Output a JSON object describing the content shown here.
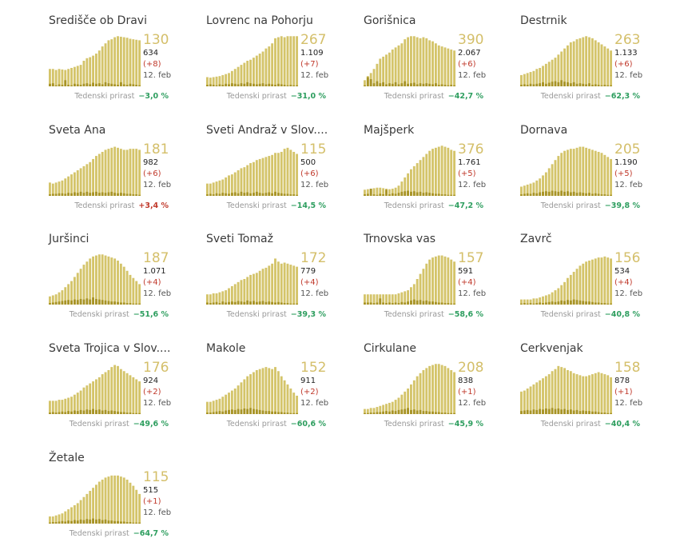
{
  "labels": {
    "growth_label": "Tedenski prirast",
    "date": "12. feb"
  },
  "colors": {
    "bar": "#d4c46a",
    "bar_dark": "#a89427",
    "active_number": "#d4bf6a",
    "new_cases": "#c0392b",
    "growth_negative": "#2e9e5f",
    "growth_positive": "#c0392b"
  },
  "chart_data": [
    {
      "type": "bar",
      "title": "Središče ob Dravi",
      "active": "130",
      "total": "634",
      "new": "(+8)",
      "growth": "−3,0 %",
      "growth_sign": "neg",
      "values": [
        34,
        34,
        32,
        34,
        33,
        32,
        34,
        36,
        38,
        40,
        42,
        50,
        55,
        57,
        60,
        64,
        70,
        78,
        84,
        90,
        92,
        96,
        98,
        97,
        96,
        95,
        93,
        92,
        91,
        90
      ],
      "daily": [
        5,
        6,
        2,
        4,
        3,
        12,
        3,
        2,
        5,
        4,
        3,
        5,
        6,
        4,
        7,
        5,
        6,
        4,
        8,
        6,
        5,
        4,
        3,
        8,
        4,
        3,
        5,
        4,
        3,
        2
      ]
    },
    {
      "type": "bar",
      "title": "Lovrenc na Pohorju",
      "active": "267",
      "total": "1.109",
      "new": "(+7)",
      "growth": "−31,0 %",
      "growth_sign": "neg",
      "values": [
        18,
        17,
        18,
        19,
        20,
        22,
        24,
        26,
        30,
        34,
        38,
        42,
        46,
        50,
        52,
        56,
        60,
        64,
        68,
        74,
        78,
        84,
        94,
        96,
        98,
        96,
        98,
        98,
        98,
        98
      ],
      "daily": [
        3,
        4,
        3,
        2,
        4,
        3,
        5,
        4,
        6,
        5,
        4,
        6,
        5,
        8,
        6,
        5,
        4,
        5,
        6,
        4,
        5,
        4,
        3,
        5,
        4,
        3,
        2,
        3,
        2,
        2
      ]
    },
    {
      "type": "bar",
      "title": "Gorišnica",
      "active": "390",
      "total": "2.067",
      "new": "(+6)",
      "growth": "−42,7 %",
      "growth_sign": "neg",
      "values": [
        12,
        20,
        26,
        34,
        44,
        54,
        58,
        62,
        66,
        72,
        76,
        80,
        84,
        92,
        96,
        98,
        98,
        96,
        94,
        96,
        94,
        90,
        88,
        84,
        80,
        78,
        76,
        74,
        72,
        70
      ],
      "daily": [
        2,
        18,
        14,
        6,
        10,
        6,
        8,
        4,
        6,
        5,
        8,
        4,
        6,
        10,
        5,
        6,
        7,
        4,
        6,
        5,
        6,
        5,
        4,
        6,
        3,
        4,
        3,
        2,
        3,
        2
      ]
    },
    {
      "type": "bar",
      "title": "Destrnik",
      "active": "263",
      "total": "1.133",
      "new": "(+6)",
      "growth": "−62,3 %",
      "growth_sign": "neg",
      "values": [
        22,
        24,
        26,
        28,
        30,
        34,
        36,
        40,
        44,
        48,
        52,
        56,
        62,
        68,
        74,
        80,
        86,
        88,
        92,
        94,
        96,
        98,
        96,
        94,
        90,
        86,
        82,
        78,
        74,
        70
      ],
      "daily": [
        3,
        4,
        3,
        5,
        4,
        5,
        6,
        8,
        5,
        7,
        9,
        10,
        8,
        12,
        9,
        8,
        6,
        8,
        5,
        6,
        5,
        4,
        6,
        3,
        4,
        3,
        2,
        3,
        2,
        2
      ]
    },
    {
      "type": "bar",
      "title": "Sveta Ana",
      "active": "181",
      "total": "982",
      "new": "(+6)",
      "growth": "+3,4 %",
      "growth_sign": "pos",
      "values": [
        26,
        24,
        26,
        28,
        30,
        34,
        38,
        42,
        46,
        50,
        54,
        58,
        62,
        66,
        72,
        78,
        82,
        86,
        90,
        92,
        94,
        96,
        94,
        92,
        90,
        90,
        92,
        92,
        92,
        90
      ],
      "daily": [
        3,
        4,
        4,
        5,
        5,
        4,
        6,
        5,
        7,
        6,
        8,
        6,
        8,
        6,
        7,
        8,
        6,
        7,
        6,
        7,
        8,
        6,
        5,
        6,
        5,
        4,
        4,
        3,
        3,
        2
      ]
    },
    {
      "type": "bar",
      "title": "Sveti Andraž v Slov....",
      "active": "115",
      "total": "500",
      "new": "(+6)",
      "growth": "−14,5 %",
      "growth_sign": "neg",
      "values": [
        24,
        24,
        26,
        28,
        30,
        32,
        36,
        40,
        42,
        46,
        50,
        54,
        56,
        60,
        64,
        66,
        70,
        72,
        74,
        76,
        78,
        80,
        84,
        84,
        86,
        92,
        94,
        90,
        86,
        82
      ],
      "daily": [
        3,
        4,
        3,
        5,
        4,
        6,
        5,
        4,
        6,
        7,
        5,
        8,
        6,
        7,
        5,
        6,
        8,
        6,
        5,
        6,
        7,
        5,
        8,
        6,
        5,
        4,
        4,
        3,
        3,
        2
      ]
    },
    {
      "type": "bar",
      "title": "Majšperk",
      "active": "376",
      "total": "1.761",
      "new": "(+5)",
      "growth": "−47,2 %",
      "growth_sign": "neg",
      "values": [
        12,
        13,
        14,
        15,
        16,
        16,
        15,
        14,
        13,
        14,
        16,
        20,
        28,
        36,
        44,
        52,
        58,
        64,
        70,
        76,
        82,
        88,
        92,
        94,
        96,
        98,
        96,
        94,
        90,
        88
      ],
      "daily": [
        3,
        4,
        14,
        3,
        2,
        4,
        3,
        12,
        3,
        5,
        4,
        6,
        8,
        9,
        10,
        8,
        9,
        7,
        8,
        6,
        7,
        6,
        5,
        4,
        4,
        3,
        3,
        2,
        2,
        2
      ]
    },
    {
      "type": "bar",
      "title": "Dornava",
      "active": "205",
      "total": "1.190",
      "new": "(+5)",
      "growth": "−39,8 %",
      "growth_sign": "neg",
      "values": [
        18,
        20,
        22,
        24,
        26,
        30,
        34,
        40,
        46,
        54,
        62,
        70,
        78,
        84,
        88,
        90,
        92,
        92,
        94,
        96,
        96,
        94,
        92,
        90,
        88,
        86,
        84,
        80,
        76,
        72
      ],
      "daily": [
        3,
        4,
        5,
        4,
        6,
        5,
        7,
        8,
        9,
        8,
        10,
        9,
        8,
        10,
        8,
        9,
        7,
        8,
        6,
        7,
        6,
        5,
        6,
        4,
        5,
        4,
        3,
        3,
        2,
        2
      ]
    },
    {
      "type": "bar",
      "title": "Juršinci",
      "active": "187",
      "total": "1.071",
      "new": "(+4)",
      "growth": "−51,6 %",
      "growth_sign": "neg",
      "values": [
        16,
        18,
        20,
        24,
        28,
        34,
        40,
        46,
        54,
        62,
        70,
        78,
        84,
        90,
        94,
        96,
        98,
        98,
        96,
        94,
        92,
        90,
        86,
        80,
        74,
        66,
        58,
        52,
        46,
        40
      ],
      "daily": [
        3,
        4,
        5,
        6,
        7,
        8,
        9,
        8,
        10,
        9,
        11,
        10,
        12,
        10,
        14,
        11,
        10,
        9,
        8,
        7,
        6,
        6,
        5,
        4,
        4,
        3,
        3,
        2,
        2,
        2
      ]
    },
    {
      "type": "bar",
      "title": "Sveti Tomaž",
      "active": "172",
      "total": "779",
      "new": "(+4)",
      "growth": "−39,3 %",
      "growth_sign": "neg",
      "values": [
        20,
        20,
        22,
        22,
        24,
        26,
        28,
        32,
        36,
        40,
        44,
        48,
        50,
        54,
        58,
        60,
        62,
        66,
        70,
        72,
        76,
        80,
        90,
        84,
        80,
        82,
        80,
        78,
        76,
        74
      ],
      "daily": [
        4,
        3,
        4,
        5,
        3,
        6,
        4,
        5,
        6,
        5,
        7,
        6,
        5,
        8,
        6,
        7,
        5,
        6,
        7,
        5,
        6,
        5,
        4,
        5,
        4,
        3,
        3,
        2,
        2,
        2
      ]
    },
    {
      "type": "bar",
      "title": "Trnovska vas",
      "active": "157",
      "total": "591",
      "new": "(+4)",
      "growth": "−58,6 %",
      "growth_sign": "neg",
      "values": [
        20,
        20,
        20,
        20,
        20,
        20,
        20,
        20,
        20,
        20,
        20,
        22,
        24,
        26,
        28,
        34,
        40,
        50,
        60,
        70,
        80,
        88,
        92,
        94,
        96,
        96,
        94,
        92,
        88,
        84
      ],
      "daily": [
        4,
        4,
        4,
        3,
        4,
        12,
        4,
        3,
        4,
        3,
        4,
        3,
        5,
        4,
        6,
        8,
        10,
        8,
        9,
        7,
        8,
        6,
        6,
        5,
        4,
        4,
        3,
        3,
        2,
        2
      ]
    },
    {
      "type": "bar",
      "title": "Zavrč",
      "active": "156",
      "total": "534",
      "new": "(+4)",
      "growth": "−40,8 %",
      "growth_sign": "neg",
      "values": [
        10,
        10,
        10,
        10,
        12,
        12,
        14,
        16,
        18,
        20,
        24,
        28,
        32,
        38,
        44,
        52,
        58,
        64,
        70,
        76,
        80,
        84,
        86,
        88,
        90,
        92,
        92,
        94,
        92,
        90
      ],
      "daily": [
        2,
        3,
        2,
        3,
        2,
        3,
        4,
        3,
        4,
        5,
        6,
        5,
        6,
        8,
        7,
        9,
        8,
        10,
        9,
        8,
        7,
        6,
        6,
        5,
        4,
        4,
        3,
        3,
        2,
        2
      ]
    },
    {
      "type": "bar",
      "title": "Sveta Trojica v Slov....",
      "active": "176",
      "total": "924",
      "new": "(+2)",
      "growth": "−49,6 %",
      "growth_sign": "neg",
      "values": [
        26,
        26,
        26,
        28,
        28,
        30,
        32,
        34,
        38,
        42,
        46,
        52,
        56,
        60,
        64,
        68,
        72,
        78,
        82,
        86,
        92,
        96,
        94,
        88,
        84,
        80,
        76,
        72,
        68,
        64
      ],
      "daily": [
        3,
        4,
        3,
        4,
        5,
        4,
        6,
        5,
        7,
        6,
        8,
        7,
        9,
        8,
        10,
        8,
        9,
        7,
        8,
        6,
        7,
        6,
        5,
        4,
        4,
        3,
        3,
        2,
        2,
        2
      ]
    },
    {
      "type": "bar",
      "title": "Makole",
      "active": "152",
      "total": "911",
      "new": "(+2)",
      "growth": "−60,6 %",
      "growth_sign": "neg",
      "values": [
        24,
        24,
        26,
        28,
        30,
        34,
        38,
        42,
        46,
        50,
        56,
        62,
        68,
        74,
        78,
        82,
        86,
        88,
        90,
        92,
        90,
        88,
        92,
        84,
        74,
        66,
        58,
        50,
        42,
        36
      ],
      "daily": [
        3,
        3,
        4,
        5,
        6,
        5,
        7,
        8,
        9,
        8,
        10,
        9,
        11,
        10,
        12,
        10,
        9,
        8,
        7,
        6,
        6,
        5,
        5,
        4,
        4,
        3,
        3,
        2,
        2,
        2
      ]
    },
    {
      "type": "bar",
      "title": "Cirkulane",
      "active": "208",
      "total": "838",
      "new": "(+1)",
      "growth": "−45,9 %",
      "growth_sign": "neg",
      "values": [
        10,
        10,
        12,
        12,
        14,
        16,
        18,
        20,
        22,
        24,
        28,
        32,
        38,
        44,
        50,
        58,
        66,
        74,
        80,
        86,
        90,
        94,
        96,
        98,
        98,
        96,
        94,
        90,
        86,
        82
      ],
      "daily": [
        2,
        2,
        3,
        3,
        4,
        4,
        5,
        6,
        5,
        7,
        6,
        8,
        9,
        10,
        12,
        8,
        9,
        7,
        8,
        6,
        6,
        5,
        5,
        4,
        4,
        3,
        3,
        2,
        2,
        2
      ]
    },
    {
      "type": "bar",
      "title": "Cerkvenjak",
      "active": "158",
      "total": "878",
      "new": "(+1)",
      "growth": "−40,4 %",
      "growth_sign": "neg",
      "values": [
        44,
        46,
        50,
        54,
        58,
        62,
        66,
        70,
        74,
        78,
        84,
        88,
        94,
        92,
        90,
        86,
        84,
        80,
        78,
        76,
        74,
        74,
        76,
        78,
        80,
        82,
        80,
        78,
        76,
        72
      ],
      "daily": [
        6,
        7,
        8,
        7,
        9,
        8,
        10,
        9,
        11,
        10,
        12,
        10,
        11,
        9,
        10,
        8,
        9,
        7,
        8,
        6,
        7,
        6,
        6,
        5,
        5,
        4,
        3,
        3,
        2,
        2
      ]
    },
    {
      "type": "bar",
      "title": "Žetale",
      "active": "115",
      "total": "515",
      "new": "(+1)",
      "growth": "−64,7 %",
      "growth_sign": "neg",
      "values": [
        14,
        14,
        16,
        18,
        20,
        24,
        28,
        32,
        36,
        40,
        46,
        52,
        58,
        64,
        70,
        76,
        82,
        86,
        90,
        92,
        94,
        94,
        94,
        92,
        90,
        86,
        80,
        74,
        66,
        58
      ],
      "daily": [
        2,
        3,
        3,
        4,
        5,
        4,
        6,
        5,
        7,
        6,
        8,
        7,
        9,
        8,
        10,
        8,
        9,
        7,
        8,
        6,
        6,
        5,
        5,
        4,
        4,
        3,
        3,
        2,
        2,
        2
      ]
    }
  ]
}
